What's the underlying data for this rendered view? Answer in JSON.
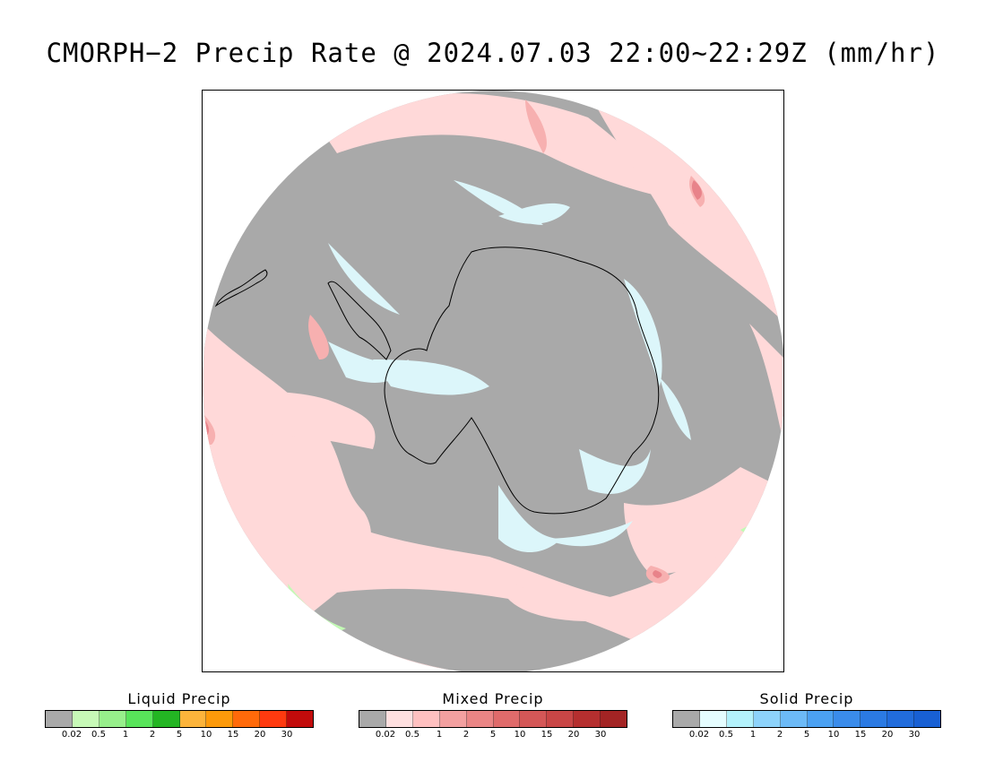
{
  "title": "CMORPH−2 Precip Rate @ 2024.07.03 22:00~22:29Z (mm/hr)",
  "map": {
    "projection": "south-polar-stereographic",
    "colors": {
      "no_precip": "#a9a9a9",
      "mixed_light": "#ffd9d9",
      "mixed_mid": "#f7b0b0",
      "mixed_heavy": "#e8838a",
      "solid_light": "#dcf6fa",
      "liquid_light": "#c2fbb4",
      "coastline": "#000000"
    }
  },
  "legends": [
    {
      "id": "liquid",
      "title": "Liquid Precip",
      "colors": [
        "#a9a9a9",
        "#c7f9b7",
        "#97ef8b",
        "#58e45a",
        "#23b523",
        "#fcb43b",
        "#fd9a0a",
        "#ff6a0a",
        "#ff3a0f",
        "#c20b0b"
      ],
      "ticks": [
        "0.02",
        "0.5",
        "1",
        "2",
        "5",
        "10",
        "15",
        "20",
        "30"
      ]
    },
    {
      "id": "mixed",
      "title": "Mixed Precip",
      "colors": [
        "#a9a9a9",
        "#ffe0e0",
        "#ffc0c0",
        "#f3a0a0",
        "#ea8585",
        "#e06b6b",
        "#d45757",
        "#c94646",
        "#b52f2f",
        "#a32424"
      ],
      "ticks": [
        "0.02",
        "0.5",
        "1",
        "2",
        "5",
        "10",
        "15",
        "20",
        "30"
      ]
    },
    {
      "id": "solid",
      "title": "Solid Precip",
      "colors": [
        "#a9a9a9",
        "#e5fdff",
        "#b3f2fc",
        "#8dd3fb",
        "#6cbaf7",
        "#4ba1f2",
        "#3a8ceb",
        "#2b7ae3",
        "#216cdc",
        "#1860d4"
      ],
      "ticks": [
        "0.02",
        "0.5",
        "1",
        "2",
        "5",
        "10",
        "15",
        "20",
        "30"
      ]
    }
  ]
}
